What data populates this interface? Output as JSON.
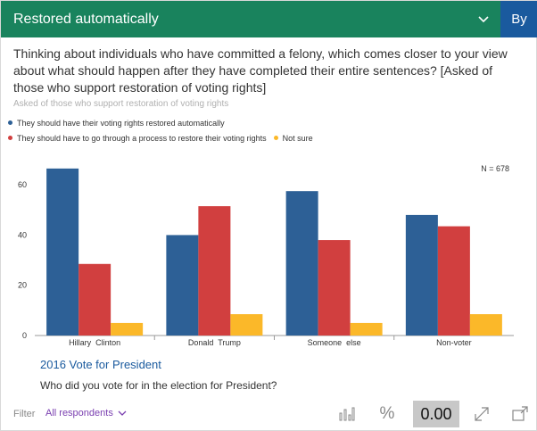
{
  "header": {
    "title": "Restored automatically",
    "by_label": "By"
  },
  "question": "Thinking about individuals who have committed a felony, which comes closer to your view about what should happen after they have completed their entire sentences? [Asked of those who support restoration of voting rights]",
  "subnote": "Asked of those who support restoration of voting rights",
  "colors": {
    "header_bg": "#19835d",
    "by_bg": "#1a5a9e",
    "accent_link": "#7a3fb0"
  },
  "chart_data": {
    "type": "bar",
    "n_label": "N = 678",
    "categories": [
      "Hillary  Clinton",
      "Donald  Trump",
      "Someone  else",
      "Non-voter"
    ],
    "series": [
      {
        "name": "They should have their voting rights restored automatically",
        "color": "#2d6096",
        "values": [
          66.5,
          40,
          57.5,
          48
        ]
      },
      {
        "name": "They should have to go through a process to restore their voting rights",
        "color": "#d13f3f",
        "values": [
          28.5,
          51.5,
          38,
          43.5
        ]
      },
      {
        "name": "Not sure",
        "color": "#fbb829",
        "values": [
          5,
          8.5,
          5,
          8.5
        ]
      }
    ],
    "ylim": [
      0,
      70
    ],
    "yticks": [
      0,
      20,
      40,
      60
    ],
    "grid": false,
    "legend": "top-left",
    "xlabel": "2016 Vote for President",
    "x_question": "Who did you vote for in the election for President?"
  },
  "footer": {
    "filter_label": "Filter",
    "filter_value": "All respondents",
    "percent_symbol": "%",
    "decimals_value": "0.00"
  }
}
